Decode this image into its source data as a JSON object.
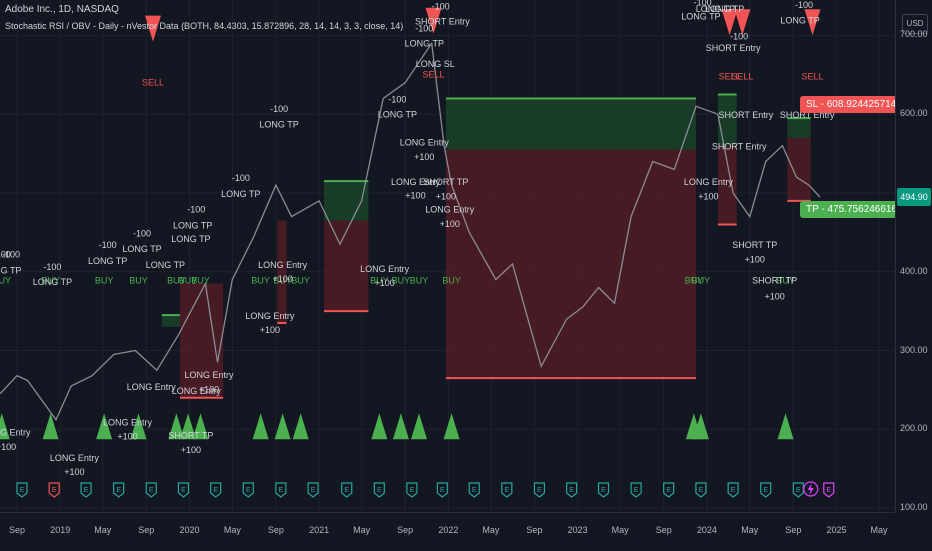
{
  "header": {
    "symbol_line": "Adobe Inc., 1D, NASDAQ",
    "indicator_line": "Stochastic RSI / OBV - Daily - nVestor Data (BOTH, 84.4303, 15.872896, 28, 14, 14, 3, 3, close, 14)"
  },
  "axis": {
    "currency": "USD",
    "last_price_label": "494.90"
  },
  "callouts": {
    "sl": "SL - 608.9244257143",
    "tp": "TP - 475.7562466160"
  },
  "colors": {
    "background": "#131722",
    "grid": "#1e222d",
    "buy": "#4caf50",
    "sell": "#f05454",
    "long_arrow": "#2962ff",
    "exit_arrow": "#e040fb",
    "zone_red": "#5a1e24",
    "zone_green": "#1b4a2a",
    "price_line": "#9598a1"
  },
  "chart_data": {
    "type": "line",
    "title": "Adobe Inc., 1D, NASDAQ",
    "xlabel": "",
    "ylabel": "",
    "x_range": [
      "2018-07-15",
      "2025-06-15"
    ],
    "ylim": [
      95,
      745
    ],
    "y_ticks": [
      100,
      200,
      300,
      400,
      500,
      600,
      700
    ],
    "y_tick_labels": [
      "100.00",
      "200.00",
      "300.00",
      "400.00",
      "500.00",
      "600.00",
      "700.00"
    ],
    "x_ticks": [
      {
        "date": "2018-09-01",
        "label": "Sep"
      },
      {
        "date": "2019-01-01",
        "label": "2019"
      },
      {
        "date": "2019-05-01",
        "label": "May"
      },
      {
        "date": "2019-09-01",
        "label": "Sep"
      },
      {
        "date": "2020-01-01",
        "label": "2020"
      },
      {
        "date": "2020-05-01",
        "label": "May"
      },
      {
        "date": "2020-09-01",
        "label": "Sep"
      },
      {
        "date": "2021-01-01",
        "label": "2021"
      },
      {
        "date": "2021-05-01",
        "label": "May"
      },
      {
        "date": "2021-09-01",
        "label": "Sep"
      },
      {
        "date": "2022-01-01",
        "label": "2022"
      },
      {
        "date": "2022-05-01",
        "label": "May"
      },
      {
        "date": "2022-09-01",
        "label": "Sep"
      },
      {
        "date": "2023-01-01",
        "label": "2023"
      },
      {
        "date": "2023-05-01",
        "label": "May"
      },
      {
        "date": "2023-09-01",
        "label": "Sep"
      },
      {
        "date": "2024-01-01",
        "label": "2024"
      },
      {
        "date": "2024-05-01",
        "label": "May"
      },
      {
        "date": "2024-09-01",
        "label": "Sep"
      },
      {
        "date": "2025-01-01",
        "label": "2025"
      },
      {
        "date": "2025-05-01",
        "label": "May"
      }
    ],
    "series": [
      {
        "values": [
          {
            "x": "2018-07-15",
            "y": 245
          },
          {
            "x": "2018-09-01",
            "y": 268
          },
          {
            "x": "2018-10-01",
            "y": 262
          },
          {
            "x": "2018-12-20",
            "y": 212
          },
          {
            "x": "2019-02-01",
            "y": 255
          },
          {
            "x": "2019-04-01",
            "y": 268
          },
          {
            "x": "2019-06-01",
            "y": 295
          },
          {
            "x": "2019-08-01",
            "y": 300
          },
          {
            "x": "2019-10-01",
            "y": 275
          },
          {
            "x": "2019-12-01",
            "y": 320
          },
          {
            "x": "2020-02-15",
            "y": 385
          },
          {
            "x": "2020-03-20",
            "y": 285
          },
          {
            "x": "2020-05-01",
            "y": 390
          },
          {
            "x": "2020-07-01",
            "y": 445
          },
          {
            "x": "2020-09-01",
            "y": 510
          },
          {
            "x": "2020-10-15",
            "y": 470
          },
          {
            "x": "2021-01-01",
            "y": 490
          },
          {
            "x": "2021-03-01",
            "y": 435
          },
          {
            "x": "2021-05-01",
            "y": 490
          },
          {
            "x": "2021-07-01",
            "y": 620
          },
          {
            "x": "2021-09-01",
            "y": 640
          },
          {
            "x": "2021-11-15",
            "y": 690
          },
          {
            "x": "2021-12-20",
            "y": 560
          },
          {
            "x": "2022-01-10",
            "y": 510
          },
          {
            "x": "2022-03-01",
            "y": 450
          },
          {
            "x": "2022-05-15",
            "y": 390
          },
          {
            "x": "2022-07-01",
            "y": 410
          },
          {
            "x": "2022-09-20",
            "y": 280
          },
          {
            "x": "2022-12-01",
            "y": 340
          },
          {
            "x": "2023-01-15",
            "y": 355
          },
          {
            "x": "2023-03-01",
            "y": 380
          },
          {
            "x": "2023-04-15",
            "y": 360
          },
          {
            "x": "2023-06-01",
            "y": 470
          },
          {
            "x": "2023-08-01",
            "y": 540
          },
          {
            "x": "2023-10-01",
            "y": 530
          },
          {
            "x": "2023-12-01",
            "y": 610
          },
          {
            "x": "2024-02-01",
            "y": 600
          },
          {
            "x": "2024-03-15",
            "y": 500
          },
          {
            "x": "2024-05-01",
            "y": 470
          },
          {
            "x": "2024-06-15",
            "y": 540
          },
          {
            "x": "2024-08-01",
            "y": 560
          },
          {
            "x": "2024-09-10",
            "y": 520
          },
          {
            "x": "2024-10-15",
            "y": 510
          },
          {
            "x": "2024-11-15",
            "y": 494.9
          }
        ]
      }
    ],
    "zones": [
      {
        "x0": "2019-10-15",
        "x1": "2019-12-05",
        "y0": 330,
        "y1": 345,
        "kind": "green"
      },
      {
        "x0": "2019-12-05",
        "x1": "2020-04-05",
        "y0": 240,
        "y1": 385,
        "kind": "red"
      },
      {
        "x0": "2020-09-05",
        "x1": "2020-10-01",
        "y0": 335,
        "y1": 465,
        "kind": "red"
      },
      {
        "x0": "2021-01-15",
        "x1": "2021-05-20",
        "y0": 465,
        "y1": 515,
        "kind": "green"
      },
      {
        "x0": "2021-01-15",
        "x1": "2021-05-20",
        "y0": 350,
        "y1": 465,
        "kind": "red"
      },
      {
        "x0": "2021-12-25",
        "x1": "2023-12-01",
        "y0": 555,
        "y1": 620,
        "kind": "green"
      },
      {
        "x0": "2021-12-25",
        "x1": "2023-12-01",
        "y0": 265,
        "y1": 555,
        "kind": "red"
      },
      {
        "x0": "2024-02-01",
        "x1": "2024-03-25",
        "y0": 560,
        "y1": 625,
        "kind": "green"
      },
      {
        "x0": "2024-02-01",
        "x1": "2024-03-25",
        "y0": 460,
        "y1": 560,
        "kind": "red"
      },
      {
        "x0": "2024-08-15",
        "x1": "2024-10-20",
        "y0": 570,
        "y1": 595,
        "kind": "green"
      },
      {
        "x0": "2024-08-15",
        "x1": "2024-10-20",
        "y0": 490,
        "y1": 570,
        "kind": "red"
      }
    ],
    "buy_signals": [
      {
        "x": "2018-07-20"
      },
      {
        "x": "2018-12-05"
      },
      {
        "x": "2019-05-05"
      },
      {
        "x": "2019-08-10"
      },
      {
        "x": "2019-11-25"
      },
      {
        "x": "2019-12-28"
      },
      {
        "x": "2020-02-01"
      },
      {
        "x": "2020-07-20"
      },
      {
        "x": "2020-09-20"
      },
      {
        "x": "2020-11-10"
      },
      {
        "x": "2021-06-20"
      },
      {
        "x": "2021-08-20"
      },
      {
        "x": "2021-10-10"
      },
      {
        "x": "2022-01-10"
      },
      {
        "x": "2023-11-25"
      },
      {
        "x": "2023-12-15"
      },
      {
        "x": "2024-08-10"
      }
    ],
    "buy_label_y": 385,
    "buy_marker_y": 200,
    "sell_signals": [
      {
        "x": "2019-09-20",
        "y": 710
      },
      {
        "x": "2021-11-20",
        "y": 720
      },
      {
        "x": "2024-03-05",
        "y": 718
      },
      {
        "x": "2024-04-10",
        "y": 718
      },
      {
        "x": "2024-10-25",
        "y": 718
      }
    ],
    "trade_labels": [
      {
        "x": "2018-07-20",
        "y": 418,
        "text": "-100"
      },
      {
        "x": "2018-08-15",
        "y": 418,
        "text": "-100"
      },
      {
        "x": "2018-07-20",
        "y": 398,
        "text": "LONG TP"
      },
      {
        "x": "2018-12-10",
        "y": 402,
        "text": "-100"
      },
      {
        "x": "2018-12-10",
        "y": 383,
        "text": "LONG TP"
      },
      {
        "x": "2019-05-15",
        "y": 430,
        "text": "-100"
      },
      {
        "x": "2019-05-15",
        "y": 410,
        "text": "LONG TP"
      },
      {
        "x": "2019-08-20",
        "y": 445,
        "text": "-100"
      },
      {
        "x": "2019-08-20",
        "y": 425,
        "text": "LONG TP"
      },
      {
        "x": "2019-10-25",
        "y": 405,
        "text": "LONG TP"
      },
      {
        "x": "2020-01-20",
        "y": 475,
        "text": "-100"
      },
      {
        "x": "2020-01-10",
        "y": 455,
        "text": "LONG TP"
      },
      {
        "x": "2020-01-05",
        "y": 438,
        "text": "LONG TP"
      },
      {
        "x": "2020-05-25",
        "y": 515,
        "text": "-100"
      },
      {
        "x": "2020-05-25",
        "y": 495,
        "text": "LONG TP"
      },
      {
        "x": "2020-09-10",
        "y": 603,
        "text": "-100"
      },
      {
        "x": "2020-09-10",
        "y": 583,
        "text": "LONG TP"
      },
      {
        "x": "2021-08-10",
        "y": 615,
        "text": "-100"
      },
      {
        "x": "2021-08-10",
        "y": 596,
        "text": "LONG TP"
      },
      {
        "x": "2021-10-25",
        "y": 705,
        "text": "-100"
      },
      {
        "x": "2021-10-25",
        "y": 686,
        "text": "LONG TP"
      },
      {
        "x": "2021-12-10",
        "y": 733,
        "text": "-100"
      },
      {
        "x": "2021-12-15",
        "y": 714,
        "text": "SHORT Entry"
      },
      {
        "x": "2021-11-25",
        "y": 660,
        "text": "LONG SL"
      },
      {
        "x": "2018-08-01",
        "y": 192,
        "text": "LONG Entry"
      },
      {
        "x": "2018-08-01",
        "y": 174,
        "text": "+100"
      },
      {
        "x": "2019-02-10",
        "y": 160,
        "text": "LONG Entry"
      },
      {
        "x": "2019-02-10",
        "y": 142,
        "text": "+100"
      },
      {
        "x": "2019-07-10",
        "y": 205,
        "text": "LONG Entry"
      },
      {
        "x": "2019-07-10",
        "y": 187,
        "text": "+100"
      },
      {
        "x": "2019-09-15",
        "y": 250,
        "text": "LONG Entry"
      },
      {
        "x": "2020-01-20",
        "y": 245,
        "text": "LONG Entry"
      },
      {
        "x": "2020-02-25",
        "y": 265,
        "text": "LONG Entry"
      },
      {
        "x": "2020-02-25",
        "y": 247,
        "text": "+100"
      },
      {
        "x": "2020-01-05",
        "y": 188,
        "text": "SHORT TP"
      },
      {
        "x": "2020-01-05",
        "y": 170,
        "text": "+100"
      },
      {
        "x": "2020-09-20",
        "y": 405,
        "text": "LONG Entry"
      },
      {
        "x": "2020-09-20",
        "y": 387,
        "text": "+100"
      },
      {
        "x": "2020-08-15",
        "y": 340,
        "text": "LONG Entry"
      },
      {
        "x": "2020-08-15",
        "y": 322,
        "text": "+100"
      },
      {
        "x": "2021-07-05",
        "y": 400,
        "text": "LONG Entry"
      },
      {
        "x": "2021-07-05",
        "y": 382,
        "text": "+100"
      },
      {
        "x": "2021-09-30",
        "y": 510,
        "text": "LONG Entry"
      },
      {
        "x": "2021-09-30",
        "y": 493,
        "text": "+100"
      },
      {
        "x": "2021-10-25",
        "y": 560,
        "text": "LONG Entry"
      },
      {
        "x": "2021-10-25",
        "y": 542,
        "text": "+100"
      },
      {
        "x": "2021-12-25",
        "y": 510,
        "text": "SHORT TP"
      },
      {
        "x": "2021-12-25",
        "y": 492,
        "text": "+100"
      },
      {
        "x": "2022-01-05",
        "y": 475,
        "text": "LONG Entry"
      },
      {
        "x": "2022-01-05",
        "y": 457,
        "text": "+100"
      },
      {
        "x": "2023-12-20",
        "y": 753,
        "text": "-100"
      },
      {
        "x": "2023-12-20",
        "y": 738,
        "text": "-100"
      },
      {
        "x": "2024-01-20",
        "y": 750,
        "text": "-100"
      },
      {
        "x": "2024-02-10",
        "y": 750,
        "text": "-100"
      },
      {
        "x": "2023-12-15",
        "y": 720,
        "text": "LONG TP"
      },
      {
        "x": "2024-01-25",
        "y": 730,
        "text": "LONG TP"
      },
      {
        "x": "2024-02-20",
        "y": 730,
        "text": "LONG TP"
      },
      {
        "x": "2024-03-15",
        "y": 680,
        "text": "SHORT Entry"
      },
      {
        "x": "2024-04-01",
        "y": 695,
        "text": "-100"
      },
      {
        "x": "2024-04-20",
        "y": 595,
        "text": "SHORT Entry"
      },
      {
        "x": "2024-04-01",
        "y": 555,
        "text": "SHORT Entry"
      },
      {
        "x": "2024-01-05",
        "y": 510,
        "text": "LONG Entry"
      },
      {
        "x": "2024-01-05",
        "y": 492,
        "text": "+100"
      },
      {
        "x": "2024-05-15",
        "y": 430,
        "text": "SHORT TP"
      },
      {
        "x": "2024-05-15",
        "y": 412,
        "text": "+100"
      },
      {
        "x": "2024-07-10",
        "y": 385,
        "text": "SHORT TP"
      },
      {
        "x": "2024-07-10",
        "y": 365,
        "text": "+100"
      },
      {
        "x": "2024-10-01",
        "y": 735,
        "text": "-100"
      },
      {
        "x": "2024-09-20",
        "y": 715,
        "text": "LONG TP"
      },
      {
        "x": "2024-10-10",
        "y": 595,
        "text": "SHORT Entry"
      }
    ],
    "sl_level": 608.9244257143,
    "tp_level": 475.756246616,
    "last_price": 494.9,
    "events": [
      {
        "x": "2018-09-15",
        "kind": "earnings"
      },
      {
        "x": "2018-12-15",
        "kind": "earnings_red"
      },
      {
        "x": "2019-03-15",
        "kind": "earnings"
      },
      {
        "x": "2019-06-15",
        "kind": "earnings"
      },
      {
        "x": "2019-09-15",
        "kind": "earnings"
      },
      {
        "x": "2019-12-15",
        "kind": "earnings"
      },
      {
        "x": "2020-03-15",
        "kind": "earnings"
      },
      {
        "x": "2020-06-15",
        "kind": "earnings"
      },
      {
        "x": "2020-09-15",
        "kind": "earnings"
      },
      {
        "x": "2020-12-15",
        "kind": "earnings"
      },
      {
        "x": "2021-03-20",
        "kind": "earnings"
      },
      {
        "x": "2021-06-20",
        "kind": "earnings"
      },
      {
        "x": "2021-09-20",
        "kind": "earnings"
      },
      {
        "x": "2021-12-15",
        "kind": "earnings"
      },
      {
        "x": "2022-03-15",
        "kind": "earnings"
      },
      {
        "x": "2022-06-15",
        "kind": "earnings"
      },
      {
        "x": "2022-09-15",
        "kind": "earnings"
      },
      {
        "x": "2022-12-15",
        "kind": "earnings"
      },
      {
        "x": "2023-03-15",
        "kind": "earnings"
      },
      {
        "x": "2023-06-15",
        "kind": "earnings"
      },
      {
        "x": "2023-09-15",
        "kind": "earnings"
      },
      {
        "x": "2023-12-15",
        "kind": "earnings"
      },
      {
        "x": "2024-03-15",
        "kind": "earnings"
      },
      {
        "x": "2024-06-15",
        "kind": "earnings"
      },
      {
        "x": "2024-09-15",
        "kind": "earnings"
      },
      {
        "x": "2024-10-20",
        "kind": "event_lightning"
      },
      {
        "x": "2024-12-10",
        "kind": "earnings_upcoming"
      }
    ]
  }
}
